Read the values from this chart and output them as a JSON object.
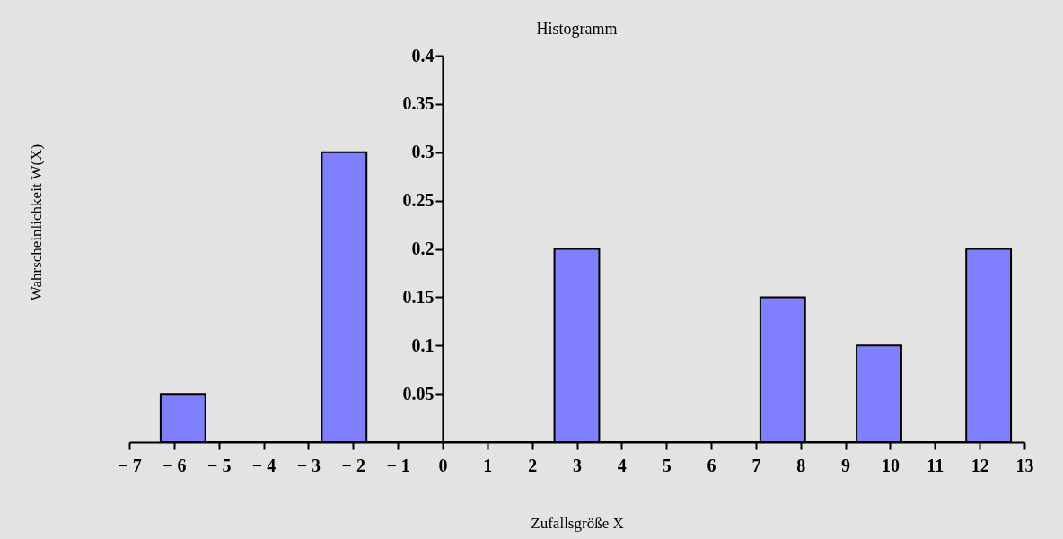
{
  "chart_data": {
    "type": "histogram",
    "title": "Histogramm",
    "xlabel": "Zufallsgröße X",
    "ylabel": "Wahrscheinlichkeit W(X)",
    "bins": [
      -6.3,
      -5.3,
      -2.7,
      -1.7,
      2.5,
      3.5,
      7.1,
      8.1,
      9.25,
      10.25,
      11.7,
      12.7
    ],
    "values": [
      0.05,
      0,
      0.3,
      0,
      0.2,
      0,
      0.15,
      0,
      0.1,
      0,
      0.2
    ],
    "color": "#8080ff",
    "xlim": [
      -7,
      13
    ],
    "xticks": [
      {
        "value": -7,
        "label": "− 7"
      },
      {
        "value": -6,
        "label": "− 6"
      },
      {
        "value": -5,
        "label": "− 5"
      },
      {
        "value": -4,
        "label": "− 4"
      },
      {
        "value": -3,
        "label": "− 3"
      },
      {
        "value": -2,
        "label": "− 2"
      },
      {
        "value": -1,
        "label": "− 1"
      },
      0,
      1,
      2,
      3,
      4,
      5,
      6,
      7,
      8,
      9,
      10,
      11,
      12,
      13
    ],
    "ylim": [
      0,
      0.4
    ],
    "yticks": [
      0.05,
      0.1,
      0.15,
      0.2,
      0.25,
      0.3,
      0.35,
      0.4
    ],
    "grid": false
  }
}
